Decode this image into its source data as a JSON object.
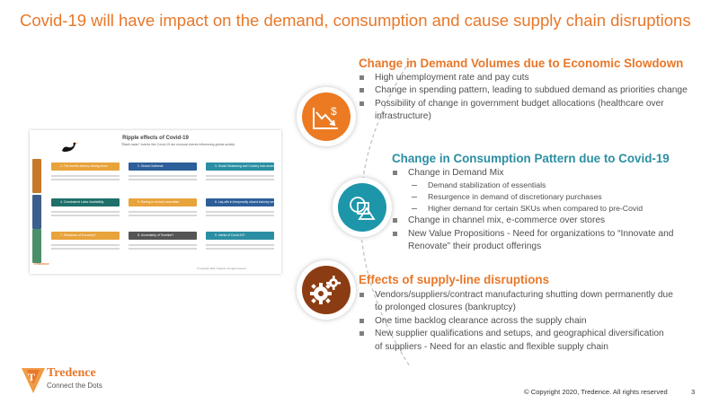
{
  "slide": {
    "title": "Covid-19 will have impact on the demand, consumption and cause supply chain disruptions"
  },
  "thumbnail": {
    "title": "Ripple effects of Covid-19",
    "subtitle": "\"Black swan\" events like Covid-19 are unusual events influencing global activity",
    "boxes": [
      {
        "label": "1. The world's factory closing down",
        "color": "#e8a33b"
      },
      {
        "label": "2. Global Outbreak",
        "color": "#2d5f9a"
      },
      {
        "label": "3. Social Distancing and Country lock-downs",
        "color": "#2b8fa3"
      },
      {
        "label": "4. Constrained Labor Availability",
        "color": "#1f6f6a"
      },
      {
        "label": "5. Racing to restock essentials",
        "color": "#e8a33b"
      },
      {
        "label": "6. Lay-offs in temporarily closed industry sectors",
        "color": "#2d5f9a"
      },
      {
        "label": "7. Slowdown of Economy?",
        "color": "#e8a33b"
      },
      {
        "label": "8. Uncertainty of Timeline?",
        "color": "#555555"
      },
      {
        "label": "9. Inertia of Covid-19?",
        "color": "#2b8fa3"
      }
    ],
    "stage_colors": [
      "#c6792a",
      "#3b5f8a",
      "#4b8f6a"
    ],
    "copyright": "© Copyright 2020, Tredence. All rights reserved",
    "logo_name": "Tredence"
  },
  "icons": {
    "demand": {
      "name": "money-decline-icon",
      "color": "#ec7a22"
    },
    "consumption": {
      "name": "shapes-icon",
      "color": "#1e96a9"
    },
    "supply": {
      "name": "gears-icon",
      "color": "#8c3c12"
    }
  },
  "sections": {
    "demand": {
      "heading": "Change in Demand Volumes due to Economic Slowdown",
      "bullets": [
        "High unemployment rate and pay cuts",
        "Change in spending pattern, leading to subdued demand as priorities change",
        "Possibility of change in government budget allocations (healthcare over infrastructure)"
      ]
    },
    "consumption": {
      "heading": "Change in Consumption Pattern due to Covid-19",
      "bullets": [
        "Change in Demand Mix",
        "Demand stabilization of essentials",
        "Resurgence in demand of discretionary purchases",
        "Higher demand for certain SKUs when compared to pre-Covid",
        "Change in channel mix, e-commerce over stores",
        "New Value Propositions - Need for organizations to “Innovate and Renovate” their product offerings"
      ]
    },
    "supply": {
      "heading": "Effects of supply-line disruptions",
      "bullets": [
        "Vendors/suppliers/contract manufacturing shutting down permanently due to prolonged closures (bankruptcy)",
        "One time backlog clearance across the supply chain",
        "New supplier qualifications and setups, and geographical diversification of suppliers - Need for an elastic and flexible supply chain"
      ]
    }
  },
  "footer": {
    "logo_name": "Tredence",
    "logo_tagline": "Connect the Dots",
    "copyright": "© Copyright 2020, Tredence. All rights reserved",
    "page_number": "3"
  }
}
